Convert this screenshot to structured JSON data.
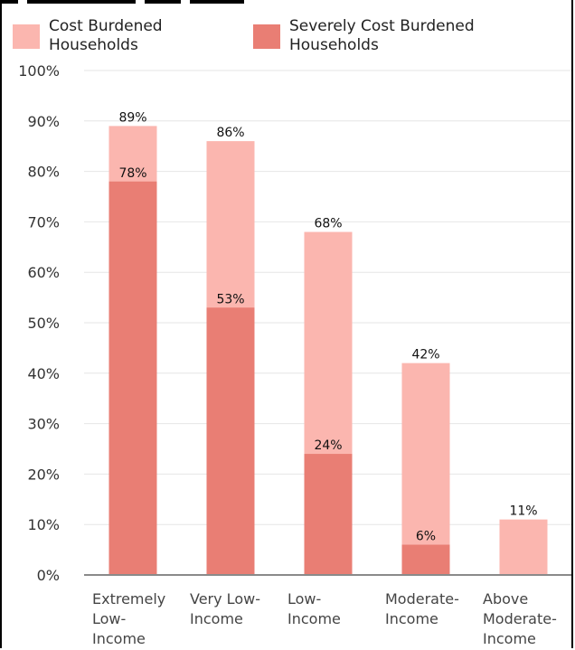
{
  "chart_data": {
    "type": "bar",
    "stacked": false,
    "overlay": true,
    "categories": [
      [
        "Extremely",
        "Low-",
        "Income"
      ],
      [
        "Very Low-",
        "Income"
      ],
      [
        "Low-",
        "Income"
      ],
      [
        "Moderate-",
        "Income"
      ],
      [
        "Above",
        "Moderate-",
        "Income"
      ]
    ],
    "series": [
      {
        "name": "Cost Burdened Households",
        "legend_lines": [
          "Cost Burdened",
          "Households"
        ],
        "color": "#fbb6af",
        "values": [
          89,
          86,
          68,
          42,
          11
        ],
        "labels": [
          "89%",
          "86%",
          "68%",
          "42%",
          "11%"
        ]
      },
      {
        "name": "Severely Cost Burdened Households",
        "legend_lines": [
          "Severely Cost Burdened",
          "Households"
        ],
        "color": "#e97e74",
        "values": [
          78,
          53,
          24,
          6,
          null
        ],
        "labels": [
          "78%",
          "53%",
          "24%",
          "6%",
          null
        ]
      }
    ],
    "ylim": [
      0,
      100
    ],
    "yticks": [
      0,
      10,
      20,
      30,
      40,
      50,
      60,
      70,
      80,
      90,
      100
    ],
    "ytick_labels": [
      "0%",
      "10%",
      "20%",
      "30%",
      "40%",
      "50%",
      "60%",
      "70%",
      "80%",
      "90%",
      "100%"
    ],
    "grid": true,
    "legend_position": "top-left",
    "title": "",
    "xlabel": "",
    "ylabel": ""
  }
}
